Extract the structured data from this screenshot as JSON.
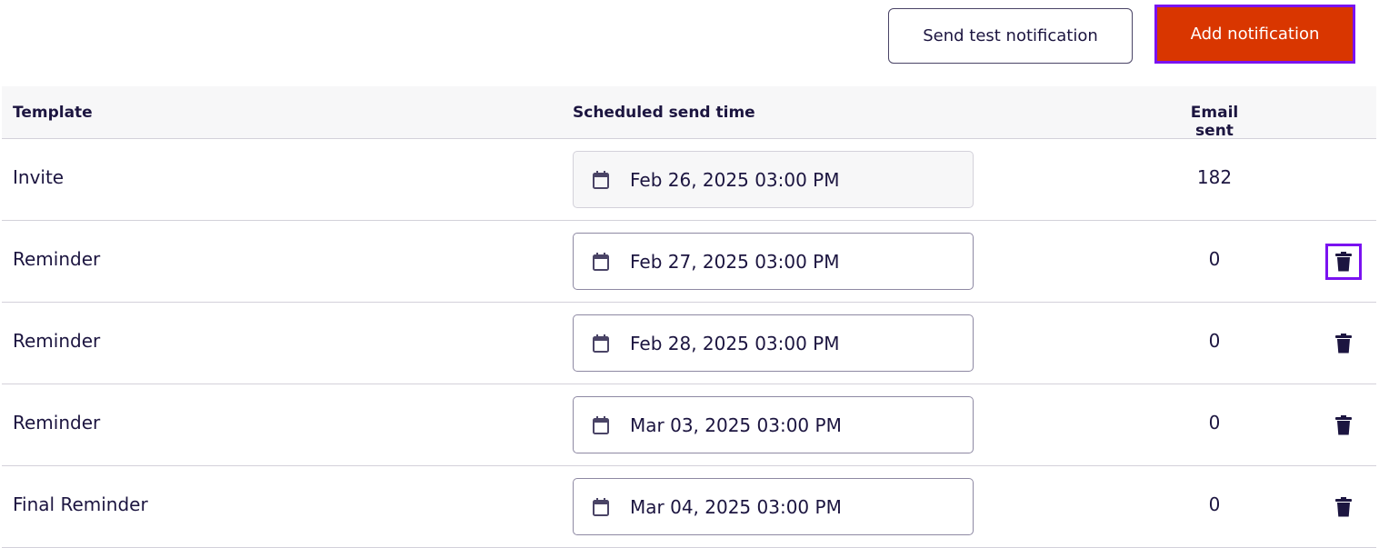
{
  "toolbar": {
    "send_test_label": "Send test notification",
    "add_label": "Add notification"
  },
  "colors": {
    "accent": "#d93600",
    "focus": "#7a12f0",
    "text": "#1c1540"
  },
  "table": {
    "headers": {
      "template": "Template",
      "scheduled": "Scheduled send time",
      "sent": "Email sent"
    },
    "rows": [
      {
        "template": "Invite",
        "scheduled": "Feb 26, 2025 03:00 PM",
        "sent": "182",
        "disabled": true,
        "deletable": false
      },
      {
        "template": "Reminder",
        "scheduled": "Feb 27, 2025 03:00 PM",
        "sent": "0",
        "deletable": true,
        "focused": true
      },
      {
        "template": "Reminder",
        "scheduled": "Feb 28, 2025 03:00 PM",
        "sent": "0",
        "deletable": true
      },
      {
        "template": "Reminder",
        "scheduled": "Mar 03, 2025 03:00 PM",
        "sent": "0",
        "deletable": true
      },
      {
        "template": "Final Reminder",
        "scheduled": "Mar 04, 2025 03:00 PM",
        "sent": "0",
        "deletable": true
      }
    ]
  }
}
